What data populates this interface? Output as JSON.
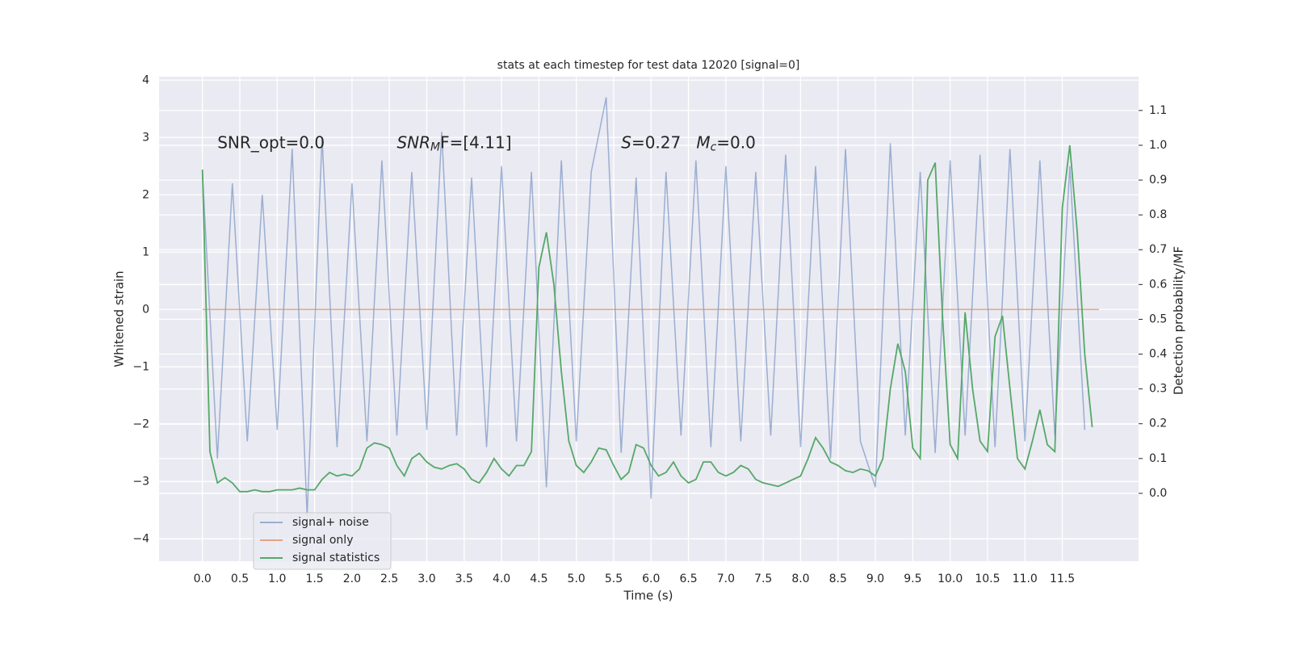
{
  "chart_data": {
    "type": "line",
    "title": "stats at each timestep for test data 12020 [signal=0]",
    "xlabel": "Time (s)",
    "ylabel": "Whitened strain",
    "y2label": "Detection probability/MF",
    "xlim": [
      -0.58,
      12.52
    ],
    "ylim": [
      -4.39,
      4.06
    ],
    "y2lim": [
      -0.195,
      1.197
    ],
    "grid": true,
    "legend": "lower left",
    "xticks": [
      {
        "value": 0,
        "label": "0.0"
      },
      {
        "value": 0.5,
        "label": "0.5"
      },
      {
        "value": 1,
        "label": "1.0"
      },
      {
        "value": 1.5,
        "label": "1.5"
      },
      {
        "value": 2,
        "label": "2.0"
      },
      {
        "value": 2.5,
        "label": "2.5"
      },
      {
        "value": 3,
        "label": "3.0"
      },
      {
        "value": 3.5,
        "label": "3.5"
      },
      {
        "value": 4,
        "label": "4.0"
      },
      {
        "value": 4.5,
        "label": "4.5"
      },
      {
        "value": 5,
        "label": "5.0"
      },
      {
        "value": 5.5,
        "label": "5.5"
      },
      {
        "value": 6,
        "label": "6.0"
      },
      {
        "value": 6.5,
        "label": "6.5"
      },
      {
        "value": 7,
        "label": "7.0"
      },
      {
        "value": 7.5,
        "label": "7.5"
      },
      {
        "value": 8,
        "label": "8.0"
      },
      {
        "value": 8.5,
        "label": "8.5"
      },
      {
        "value": 9,
        "label": "9.0"
      },
      {
        "value": 9.5,
        "label": "9.5"
      },
      {
        "value": 10,
        "label": "10.0"
      },
      {
        "value": 10.5,
        "label": "10.5"
      },
      {
        "value": 11,
        "label": "11.0"
      },
      {
        "value": 11.5,
        "label": "11.5"
      }
    ],
    "yticks": [
      4,
      3,
      2,
      1,
      0,
      {
        "value": -1,
        "label": "−1"
      },
      {
        "value": -2,
        "label": "−2"
      },
      {
        "value": -3,
        "label": "−3"
      },
      {
        "value": -4,
        "label": "−4"
      }
    ],
    "y2ticks": [
      {
        "value": 0,
        "label": "0.0"
      },
      {
        "value": 0.1,
        "label": "0.1"
      },
      {
        "value": 0.2,
        "label": "0.2"
      },
      {
        "value": 0.3,
        "label": "0.3"
      },
      {
        "value": 0.4,
        "label": "0.4"
      },
      {
        "value": 0.5,
        "label": "0.5"
      },
      {
        "value": 0.6,
        "label": "0.6"
      },
      {
        "value": 0.7,
        "label": "0.7"
      },
      {
        "value": 0.8,
        "label": "0.8"
      },
      {
        "value": 0.9,
        "label": "0.9"
      },
      {
        "value": 1,
        "label": "1.0"
      },
      {
        "value": 1.1,
        "label": "1.1"
      }
    ],
    "annotations": [
      {
        "x": 0.2,
        "y": 2.9,
        "parts": [
          {
            "text": "SNR_opt=0.0",
            "style": "normal"
          }
        ]
      },
      {
        "x": 2.6,
        "y": 2.9,
        "parts": [
          {
            "text": "SNR",
            "style": "italic"
          },
          {
            "text": "M",
            "style": "sub"
          },
          {
            "text": "F=[4.11]",
            "style": "normal"
          }
        ]
      },
      {
        "x": 5.6,
        "y": 2.9,
        "parts": [
          {
            "text": "S",
            "style": "italic"
          },
          {
            "text": "=0.27   ",
            "style": "normal"
          },
          {
            "text": "M",
            "style": "italic"
          },
          {
            "text": "c",
            "style": "sub"
          },
          {
            "text": "=0.0",
            "style": "normal"
          }
        ]
      }
    ],
    "series": [
      {
        "name": "signal+ noise",
        "color": "#4c72b0",
        "opacity": 0.5,
        "axis": "y",
        "x": [
          0,
          0.2,
          0.4,
          0.6,
          0.8,
          1,
          1.2,
          1.4,
          1.6,
          1.8,
          2,
          2.2,
          2.4,
          2.6,
          2.8,
          3,
          3.2,
          3.4,
          3.6,
          3.8,
          4,
          4.2,
          4.4,
          4.6,
          4.8,
          5,
          5.2,
          5.4,
          5.6,
          5.8,
          6,
          6.2,
          6.4,
          6.6,
          6.8,
          7,
          7.2,
          7.4,
          7.6,
          7.8,
          8,
          8.2,
          8.4,
          8.6,
          8.8,
          9,
          9.2,
          9.4,
          9.6,
          9.8,
          10,
          10.2,
          10.4,
          10.6,
          10.8,
          11,
          11.2,
          11.4,
          11.6,
          11.8
        ],
        "values": [
          2.4,
          -2.6,
          2.2,
          -2.3,
          2.0,
          -2.1,
          2.8,
          -3.6,
          3.0,
          -2.4,
          2.2,
          -2.3,
          2.6,
          -2.2,
          2.4,
          -2.1,
          3.1,
          -2.2,
          2.3,
          -2.4,
          2.5,
          -2.3,
          2.4,
          -3.1,
          2.6,
          -2.3,
          2.4,
          3.7,
          -2.5,
          2.3,
          -3.3,
          2.4,
          -2.2,
          2.6,
          -2.4,
          2.5,
          -2.3,
          2.4,
          -2.2,
          2.7,
          -2.4,
          2.5,
          -2.6,
          2.8,
          -2.3,
          -3.1,
          2.9,
          -2.2,
          2.4,
          -2.5,
          2.6,
          -2.2,
          2.7,
          -2.4,
          2.8,
          -2.3,
          2.6,
          -2.2,
          2.5,
          -2.1
        ]
      },
      {
        "name": "signal only",
        "color": "#dd8452",
        "opacity": 0.7,
        "axis": "y",
        "x": [
          0,
          11.99
        ],
        "values": [
          0,
          0
        ]
      },
      {
        "name": "signal statistics",
        "color": "#55a868",
        "opacity": 1,
        "axis": "y2",
        "x": [
          0,
          0.1,
          0.2,
          0.3,
          0.4,
          0.5,
          0.6,
          0.7,
          0.8,
          0.9,
          1,
          1.1,
          1.2,
          1.3,
          1.4,
          1.5,
          1.6,
          1.7,
          1.8,
          1.9,
          2,
          2.1,
          2.2,
          2.3,
          2.4,
          2.5,
          2.6,
          2.7,
          2.8,
          2.9,
          3,
          3.1,
          3.2,
          3.3,
          3.4,
          3.5,
          3.6,
          3.7,
          3.8,
          3.9,
          4,
          4.1,
          4.2,
          4.3,
          4.4,
          4.5,
          4.6,
          4.7,
          4.8,
          4.9,
          5,
          5.1,
          5.2,
          5.3,
          5.4,
          5.5,
          5.6,
          5.7,
          5.8,
          5.9,
          6,
          6.1,
          6.2,
          6.3,
          6.4,
          6.5,
          6.6,
          6.7,
          6.8,
          6.9,
          7,
          7.1,
          7.2,
          7.3,
          7.4,
          7.5,
          7.6,
          7.7,
          7.8,
          7.9,
          8,
          8.1,
          8.2,
          8.3,
          8.4,
          8.5,
          8.6,
          8.7,
          8.8,
          8.9,
          9,
          9.1,
          9.2,
          9.3,
          9.4,
          9.5,
          9.6,
          9.7,
          9.8,
          9.9,
          10,
          10.1,
          10.2,
          10.3,
          10.4,
          10.5,
          10.6,
          10.7,
          10.8,
          10.9,
          11,
          11.1,
          11.2,
          11.3,
          11.4,
          11.5,
          11.6,
          11.7,
          11.8,
          11.9
        ],
        "values": [
          0.93,
          0.12,
          0.03,
          0.045,
          0.03,
          0.005,
          0.005,
          0.01,
          0.005,
          0.005,
          0.01,
          0.01,
          0.01,
          0.015,
          0.01,
          0.01,
          0.04,
          0.06,
          0.05,
          0.055,
          0.05,
          0.07,
          0.13,
          0.145,
          0.14,
          0.13,
          0.08,
          0.05,
          0.1,
          0.115,
          0.09,
          0.075,
          0.07,
          0.08,
          0.085,
          0.07,
          0.04,
          0.03,
          0.06,
          0.1,
          0.07,
          0.05,
          0.08,
          0.08,
          0.12,
          0.65,
          0.75,
          0.6,
          0.35,
          0.15,
          0.08,
          0.06,
          0.09,
          0.13,
          0.125,
          0.08,
          0.04,
          0.06,
          0.14,
          0.13,
          0.08,
          0.05,
          0.06,
          0.09,
          0.05,
          0.03,
          0.04,
          0.09,
          0.09,
          0.06,
          0.05,
          0.06,
          0.08,
          0.07,
          0.04,
          0.03,
          0.025,
          0.02,
          0.03,
          0.04,
          0.05,
          0.1,
          0.16,
          0.13,
          0.09,
          0.08,
          0.065,
          0.06,
          0.07,
          0.065,
          0.05,
          0.1,
          0.3,
          0.43,
          0.35,
          0.13,
          0.1,
          0.9,
          0.95,
          0.5,
          0.14,
          0.1,
          0.52,
          0.3,
          0.15,
          0.12,
          0.45,
          0.51,
          0.3,
          0.1,
          0.07,
          0.15,
          0.24,
          0.14,
          0.12,
          0.82,
          1.0,
          0.75,
          0.4,
          0.19
        ]
      }
    ]
  }
}
